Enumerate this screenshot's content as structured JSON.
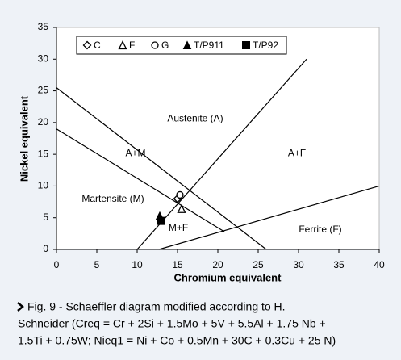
{
  "chart_data": {
    "type": "scatter",
    "xlabel": "Chromium equivalent",
    "ylabel": "Nickel equivalent",
    "xlim": [
      0,
      40
    ],
    "xticks": [
      0,
      5,
      10,
      15,
      20,
      25,
      30,
      35,
      40
    ],
    "ylim": [
      0,
      35
    ],
    "yticks": [
      0,
      5,
      10,
      15,
      20,
      25,
      30,
      35
    ],
    "legend": "top",
    "series": [
      {
        "name": "C",
        "marker": "diamond-open",
        "color": "#000000",
        "x": [
          15
        ],
        "values": [
          8
        ]
      },
      {
        "name": "F",
        "marker": "triangle-open",
        "color": "#000000",
        "x": [
          15.5
        ],
        "values": [
          6.4
        ]
      },
      {
        "name": "G",
        "marker": "circle-open",
        "color": "#000000",
        "x": [
          15.3
        ],
        "values": [
          8.6
        ]
      },
      {
        "name": "T/P911",
        "marker": "triangle-filled",
        "color": "#000000",
        "x": [
          12.8
        ],
        "values": [
          5.3
        ]
      },
      {
        "name": "T/P92",
        "marker": "square-filled",
        "color": "#000000",
        "x": [
          12.9
        ],
        "values": [
          4.5
        ]
      }
    ],
    "lines": [
      {
        "x": [
          0,
          26
        ],
        "y": [
          25.5,
          0
        ]
      },
      {
        "x": [
          0,
          20.8
        ],
        "y": [
          19,
          2.8
        ]
      },
      {
        "x": [
          10,
          31
        ],
        "y": [
          0,
          30
        ]
      },
      {
        "x": [
          12.7,
          40
        ],
        "y": [
          0,
          10
        ]
      }
    ],
    "annotations": [
      {
        "text": "Austenite (A)",
        "x": 17.2,
        "y": 20.6
      },
      {
        "text": "A+M",
        "x": 9.8,
        "y": 15.1
      },
      {
        "text": "A+F",
        "x": 29.8,
        "y": 15.1
      },
      {
        "text": "Martensite (M)",
        "x": 7,
        "y": 7.9
      },
      {
        "text": "M+F",
        "x": 15.1,
        "y": 3.3
      },
      {
        "text": "Ferrite (F)",
        "x": 32.7,
        "y": 3.1
      }
    ],
    "caption": [
      "Fig. 9 - Schaeffler diagram modified according to H.",
      "Schneider (Creq = Cr + 2Si + 1.5Mo + 5V + 5.5Al + 1.75 Nb +",
      "1.5Ti + 0.75W; Nieq1 = Ni + Co + 0.5Mn + 30C + 0.3Cu + 25 N)"
    ]
  }
}
